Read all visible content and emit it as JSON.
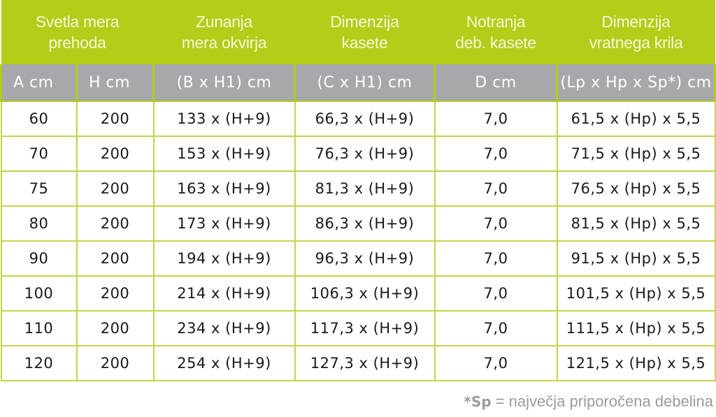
{
  "table": {
    "group_headers": [
      {
        "label": "Svetla mera\nprehoda",
        "colspan": 2,
        "line1": "Svetla mera",
        "line2": "prehoda"
      },
      {
        "label": "Zunanja mera okvirja",
        "line1": "Zunanja",
        "line2": "mera okvirja"
      },
      {
        "label": "Dimenzija kasete",
        "line1": "Dimenzija",
        "line2": "kasete"
      },
      {
        "label": "Notranja deb. kasete",
        "line1": "Notranja",
        "line2": "deb. kasete"
      },
      {
        "label": "Dimenzija vratnega krila",
        "line1": "Dimenzija",
        "line2": "vratnega krila"
      }
    ],
    "unit_headers": [
      "A cm",
      "H cm",
      "(B x H1) cm",
      "(C x H1) cm",
      "D cm",
      "(Lp x Hp x Sp*) cm"
    ],
    "rows": [
      [
        "60",
        "200",
        "133 x (H+9)",
        "66,3 x (H+9)",
        "7,0",
        "61,5 x (Hp) x 5,5"
      ],
      [
        "70",
        "200",
        "153 x (H+9)",
        "76,3 x (H+9)",
        "7,0",
        "71,5 x (Hp) x 5,5"
      ],
      [
        "75",
        "200",
        "163 x (H+9)",
        "81,3 x (H+9)",
        "7,0",
        "76,5 x (Hp) x 5,5"
      ],
      [
        "80",
        "200",
        "173 x (H+9)",
        "86,3 x (H+9)",
        "7,0",
        "81,5 x (Hp) x 5,5"
      ],
      [
        "90",
        "200",
        "194 x (H+9)",
        "96,3 x (H+9)",
        "7,0",
        "91,5 x (Hp) x 5,5"
      ],
      [
        "100",
        "200",
        "214 x (H+9)",
        "106,3 x (H+9)",
        "7,0",
        "101,5 x (Hp) x 5,5"
      ],
      [
        "110",
        "200",
        "234 x (H+9)",
        "117,3 x (H+9)",
        "7,0",
        "111,5 x (Hp) x 5,5"
      ],
      [
        "120",
        "200",
        "254 x (H+9)",
        "127,3 x (H+9)",
        "7,0",
        "121,5 x (Hp) x 5,5"
      ]
    ]
  },
  "footnote": {
    "marker": "*Sp",
    "text": " = največja priporočena debelina"
  },
  "colors": {
    "header_green": "#b5cc18",
    "header_gray": "#a6a9ab",
    "grid_line": "#c4d34a",
    "footnote_gray": "#9a9c9e"
  }
}
